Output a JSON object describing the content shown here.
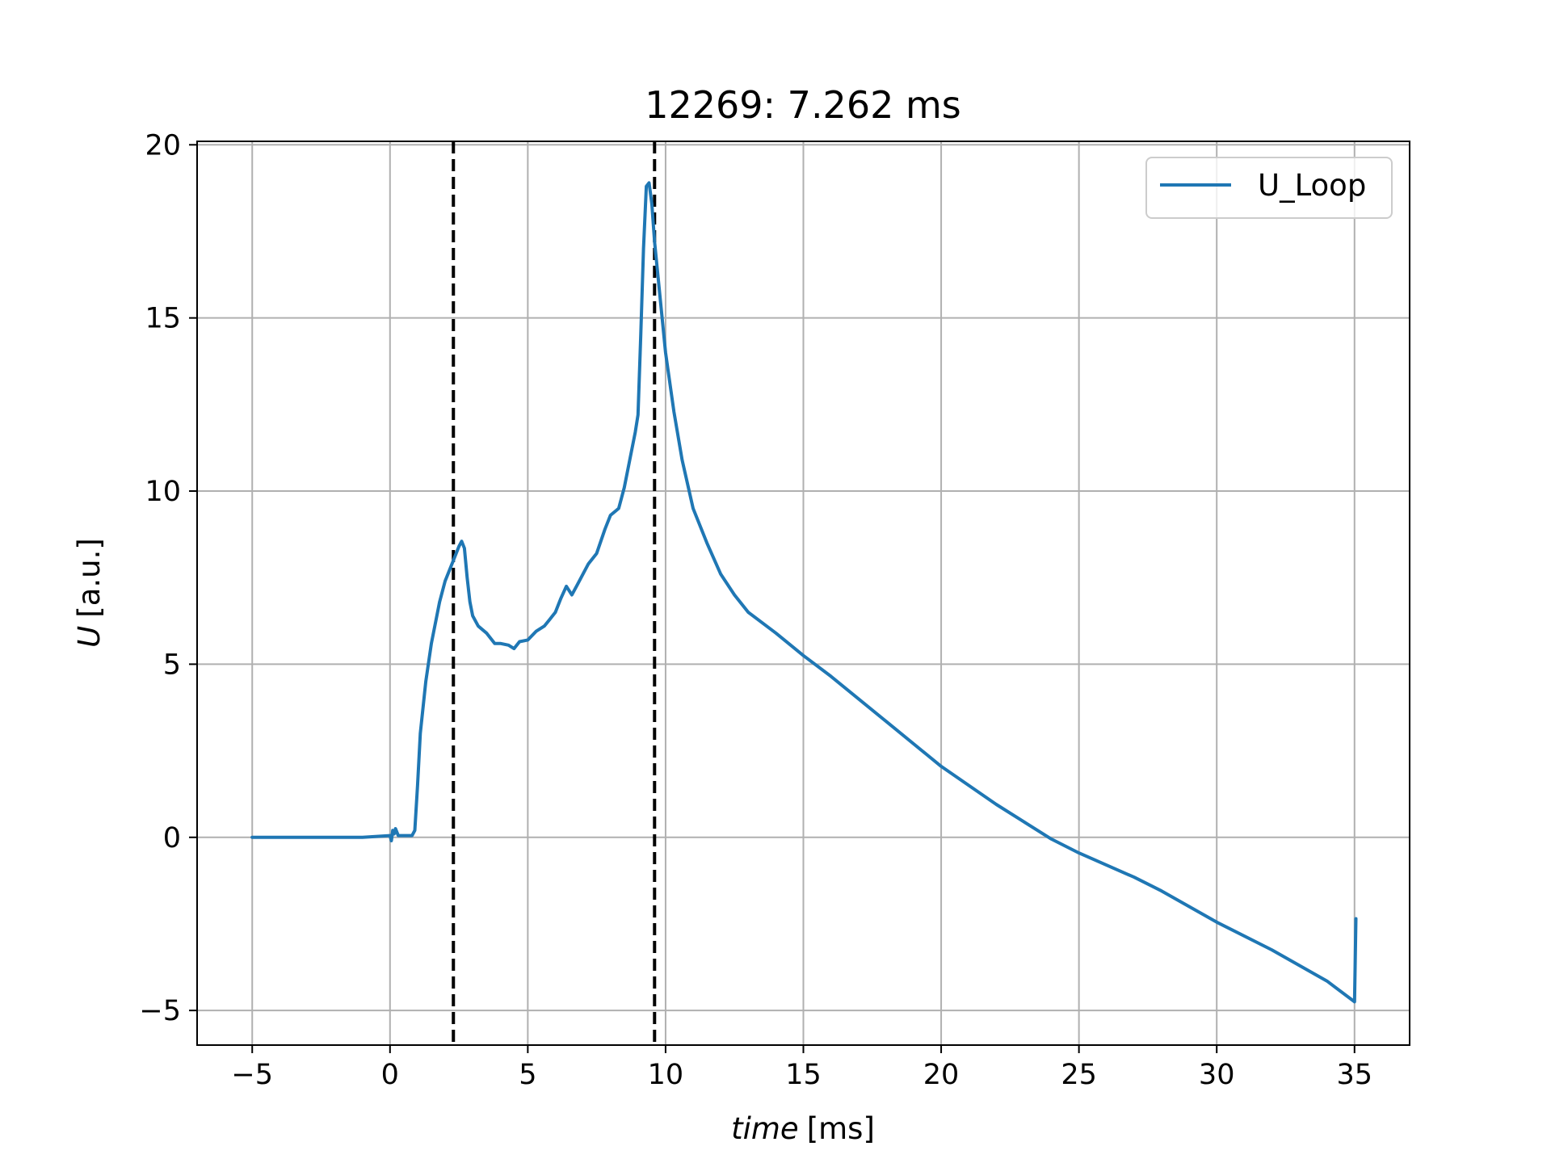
{
  "chart_data": {
    "type": "line",
    "title": "12269: 7.262 ms",
    "xlabel_var": "time",
    "xlabel_unit": "[ms]",
    "ylabel_var": "U",
    "ylabel_unit": "[a.u.]",
    "xlim": [
      -7,
      37
    ],
    "ylim": [
      -6,
      20.1
    ],
    "xticks": [
      -5,
      0,
      5,
      10,
      15,
      20,
      25,
      30,
      35
    ],
    "yticks": [
      -5,
      0,
      5,
      10,
      15,
      20
    ],
    "xtick_labels": [
      "−5",
      "0",
      "5",
      "10",
      "15",
      "20",
      "25",
      "30",
      "35"
    ],
    "ytick_labels": [
      "−5",
      "0",
      "5",
      "10",
      "15",
      "20"
    ],
    "grid": true,
    "legend_position": "top-right",
    "vlines": [
      2.3,
      9.6
    ],
    "vline_style": "dashed",
    "vline_color": "#000000",
    "series": [
      {
        "name": "U_Loop",
        "color": "#1f77b4",
        "x": [
          -5,
          -1,
          0,
          0.05,
          0.1,
          0.15,
          0.2,
          0.3,
          0.5,
          0.8,
          0.9,
          1.0,
          1.1,
          1.3,
          1.5,
          1.8,
          2.0,
          2.3,
          2.5,
          2.6,
          2.7,
          2.8,
          2.9,
          3.0,
          3.2,
          3.5,
          3.8,
          4.0,
          4.3,
          4.5,
          4.7,
          5.0,
          5.3,
          5.6,
          5.8,
          6.0,
          6.2,
          6.4,
          6.6,
          6.8,
          7.0,
          7.2,
          7.5,
          7.8,
          8.0,
          8.3,
          8.5,
          8.7,
          8.9,
          9.0,
          9.1,
          9.2,
          9.3,
          9.4,
          9.5,
          9.6,
          9.8,
          10.0,
          10.3,
          10.6,
          11.0,
          11.5,
          12.0,
          12.5,
          13.0,
          14.0,
          15.0,
          16.0,
          18.0,
          20.0,
          22.0,
          24.0,
          25.0,
          27.0,
          28.0,
          30.0,
          32.0,
          34.0,
          35.0,
          35.05
        ],
        "y": [
          0,
          0,
          0.05,
          -0.1,
          0.2,
          0.1,
          0.25,
          0.05,
          0.05,
          0.05,
          0.2,
          1.5,
          3.0,
          4.5,
          5.6,
          6.8,
          7.4,
          8.0,
          8.4,
          8.55,
          8.35,
          7.5,
          6.8,
          6.4,
          6.1,
          5.9,
          5.6,
          5.6,
          5.55,
          5.45,
          5.65,
          5.7,
          5.95,
          6.1,
          6.3,
          6.5,
          6.9,
          7.25,
          7.0,
          7.3,
          7.6,
          7.9,
          8.2,
          8.9,
          9.3,
          9.5,
          10.1,
          10.9,
          11.7,
          12.2,
          14.5,
          17.0,
          18.8,
          18.9,
          18.3,
          17.2,
          15.6,
          14.0,
          12.3,
          10.9,
          9.5,
          8.5,
          7.6,
          7.0,
          6.5,
          5.9,
          5.25,
          4.65,
          3.35,
          2.05,
          0.95,
          -0.05,
          -0.45,
          -1.15,
          -1.55,
          -2.45,
          -3.25,
          -4.15,
          -4.75,
          -2.35
        ]
      }
    ]
  }
}
